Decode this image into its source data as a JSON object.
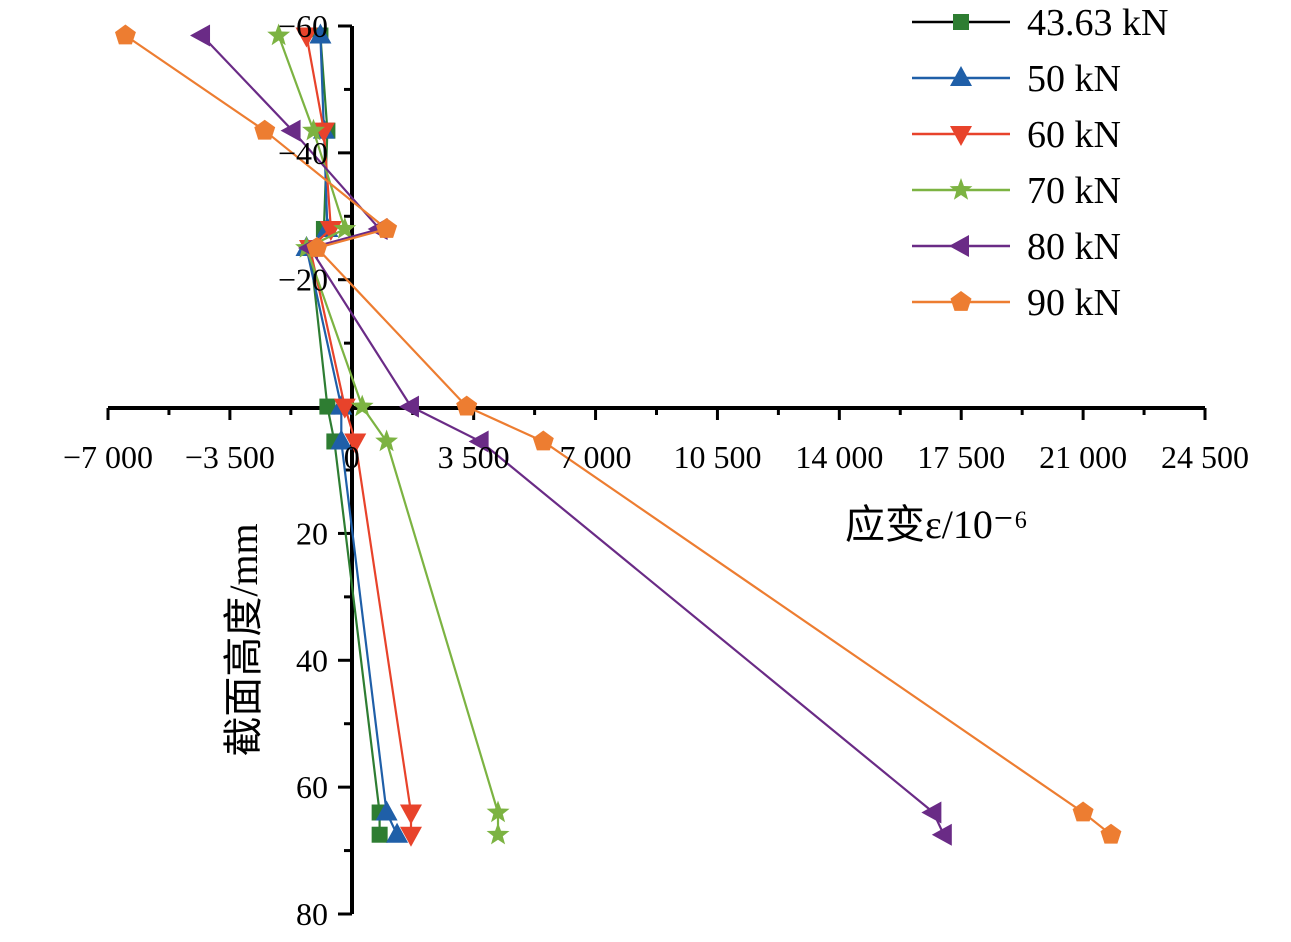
{
  "chart_data": {
    "type": "line",
    "xlabel": "应变ε/10⁻⁶",
    "ylabel": "截面高度/mm",
    "xlim": [
      -7000,
      24500
    ],
    "ylim": [
      -60,
      80
    ],
    "y_inverted": true,
    "x_ticks": [
      {
        "value": -7000,
        "label": "−7 000"
      },
      {
        "value": -3500,
        "label": "−3 500"
      },
      {
        "value": 0,
        "label": "0"
      },
      {
        "value": 3500,
        "label": "3 500"
      },
      {
        "value": 7000,
        "label": "7 000"
      },
      {
        "value": 10500,
        "label": "10 500"
      },
      {
        "value": 14000,
        "label": "14 000"
      },
      {
        "value": 17500,
        "label": "17 500"
      },
      {
        "value": 21000,
        "label": "21 000"
      },
      {
        "value": 24500,
        "label": "24 500"
      }
    ],
    "y_ticks": [
      {
        "value": -60,
        "label": "−60"
      },
      {
        "value": -40,
        "label": "−40"
      },
      {
        "value": -20,
        "label": "−20"
      },
      {
        "value": 20,
        "label": "20"
      },
      {
        "value": 40,
        "label": "40"
      },
      {
        "value": 60,
        "label": "60"
      },
      {
        "value": 80,
        "label": "80"
      }
    ],
    "grid": false,
    "legend_position": "top-right",
    "series": [
      {
        "name": "43.63 kN",
        "color": "#2e7d32",
        "marker": "square",
        "points": [
          [
            -900,
            -58.5
          ],
          [
            -700,
            -43.5
          ],
          [
            -800,
            -28
          ],
          [
            -1200,
            -25
          ],
          [
            -700,
            0
          ],
          [
            -500,
            5.5
          ],
          [
            800,
            64
          ],
          [
            800,
            67.5
          ]
        ]
      },
      {
        "name": "50 kN",
        "color": "#1f5fa8",
        "marker": "triangle-up",
        "points": [
          [
            -900,
            -58.5
          ],
          [
            -800,
            -43.5
          ],
          [
            -700,
            -28
          ],
          [
            -1300,
            -25
          ],
          [
            -300,
            0
          ],
          [
            -300,
            5.5
          ],
          [
            1000,
            64
          ],
          [
            1300,
            67.5
          ]
        ]
      },
      {
        "name": "60 kN",
        "color": "#e8432b",
        "marker": "triangle-down",
        "points": [
          [
            -1300,
            -58.5
          ],
          [
            -800,
            -43.5
          ],
          [
            -600,
            -28
          ],
          [
            -1200,
            -25
          ],
          [
            -200,
            0
          ],
          [
            100,
            5.5
          ],
          [
            1700,
            64
          ],
          [
            1700,
            67.5
          ]
        ]
      },
      {
        "name": "70 kN",
        "color": "#7cb342",
        "marker": "star",
        "points": [
          [
            -2100,
            -58.5
          ],
          [
            -1100,
            -43.5
          ],
          [
            -200,
            -28
          ],
          [
            -1300,
            -25
          ],
          [
            300,
            0
          ],
          [
            1000,
            5.5
          ],
          [
            4200,
            64
          ],
          [
            4200,
            67.5
          ]
        ]
      },
      {
        "name": "80 kN",
        "color": "#6a2b86",
        "marker": "triangle-left",
        "points": [
          [
            -4300,
            -58.5
          ],
          [
            -1700,
            -43.5
          ],
          [
            800,
            -28
          ],
          [
            -1200,
            -25
          ],
          [
            1700,
            0
          ],
          [
            3700,
            5.5
          ],
          [
            16700,
            64
          ],
          [
            17000,
            67.5
          ]
        ]
      },
      {
        "name": "90 kN",
        "color": "#ed7d31",
        "marker": "pentagon",
        "points": [
          [
            -6500,
            -58.5
          ],
          [
            -2500,
            -43.5
          ],
          [
            1000,
            -28
          ],
          [
            -1000,
            -25
          ],
          [
            3300,
            0
          ],
          [
            5500,
            5.5
          ],
          [
            21000,
            64
          ],
          [
            21800,
            67.5
          ]
        ]
      }
    ]
  }
}
